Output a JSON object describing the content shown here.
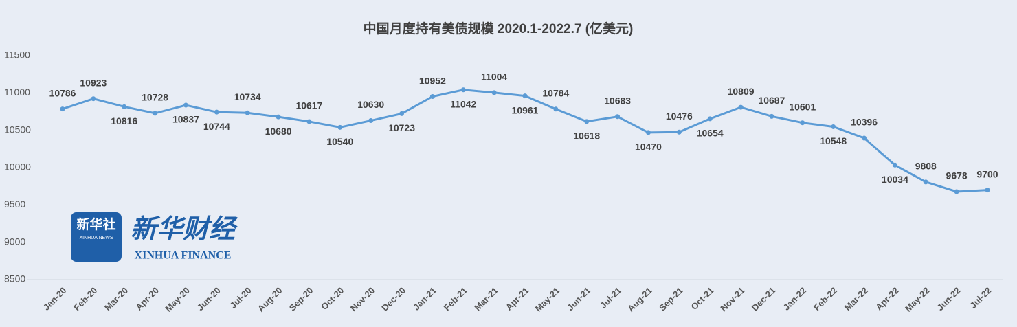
{
  "chart_data": {
    "type": "line",
    "title": "中国月度持有美债规模 2020.1-2022.7 (亿美元)",
    "categories": [
      "Jan-20",
      "Feb-20",
      "Mar-20",
      "Apr-20",
      "May-20",
      "Jun-20",
      "Jul-20",
      "Aug-20",
      "Sep-20",
      "Oct-20",
      "Nov-20",
      "Dec-20",
      "Jan-21",
      "Feb-21",
      "Mar-21",
      "Apr-21",
      "May-21",
      "Jun-21",
      "Jul-21",
      "Aug-21",
      "Sep-21",
      "Oct-21",
      "Nov-21",
      "Dec-21",
      "Jan-22",
      "Feb-22",
      "Mar-22",
      "Apr-22",
      "May-22",
      "Jun-22",
      "Jul-22"
    ],
    "series": [
      {
        "name": "中国持有美债",
        "color": "#5b9bd5",
        "values": [
          10786,
          10923,
          10816,
          10728,
          10837,
          10744,
          10734,
          10680,
          10617,
          10540,
          10630,
          10723,
          10952,
          11042,
          11004,
          10961,
          10784,
          10618,
          10683,
          10470,
          10476,
          10654,
          10809,
          10687,
          10601,
          10548,
          10396,
          10034,
          9808,
          9678,
          9700
        ]
      }
    ],
    "ylim": [
      8500,
      11500
    ],
    "yticks": [
      8500,
      9000,
      9500,
      10000,
      10500,
      11000,
      11500
    ],
    "grid": false
  },
  "logo": {
    "agency": "新华社",
    "agency_en": "XINHUA NEWS",
    "brand": "新华财经",
    "brand_en": "XINHUA FINANCE"
  }
}
